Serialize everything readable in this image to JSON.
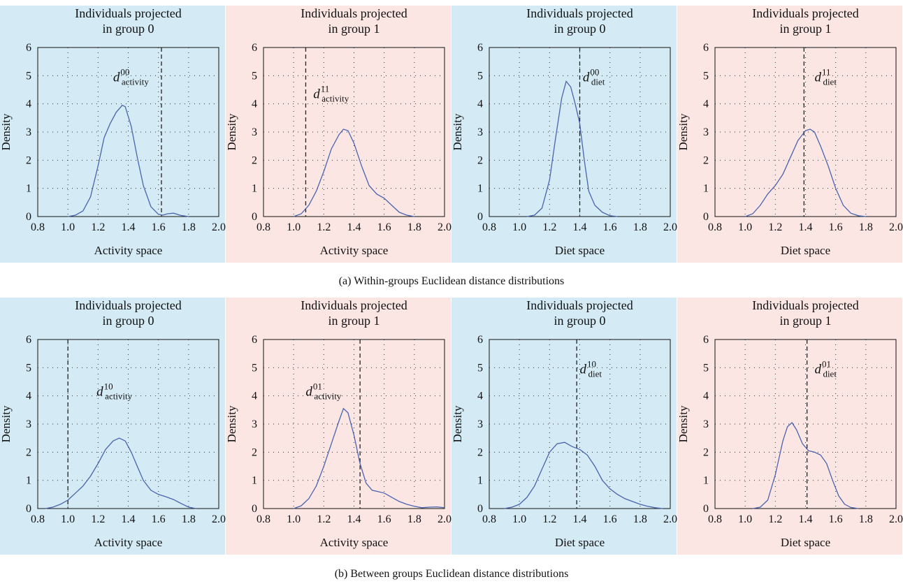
{
  "rows": [
    {
      "caption": "(a)  Within-groups Euclidean distance distributions",
      "panels": [
        {
          "bg": "#d4eaf4",
          "title_lines": [
            "Individuals projected",
            "in group 0"
          ],
          "xlabel": "Activity space",
          "ylabel": "Density",
          "annotation": {
            "base": "d",
            "sup": "00",
            "sub": "activity"
          },
          "chart_data": {
            "type": "line",
            "xlim": [
              0.8,
              2.0
            ],
            "ylim": [
              0,
              6
            ],
            "xticks": [
              "0.8",
              "1.0",
              "1.2",
              "1.4",
              "1.6",
              "1.8",
              "2.0"
            ],
            "yticks": [
              "0",
              "1",
              "2",
              "3",
              "4",
              "5",
              "6"
            ],
            "ref_x": 1.62,
            "annotation_at": [
              1.3,
              4.8
            ],
            "x": [
              1.0,
              1.05,
              1.1,
              1.15,
              1.2,
              1.24,
              1.28,
              1.32,
              1.36,
              1.38,
              1.42,
              1.46,
              1.5,
              1.55,
              1.6,
              1.63,
              1.66,
              1.7,
              1.75,
              1.8
            ],
            "y": [
              0.0,
              0.05,
              0.2,
              0.7,
              1.8,
              2.8,
              3.3,
              3.7,
              3.95,
              3.9,
              3.2,
              2.1,
              1.1,
              0.35,
              0.08,
              0.05,
              0.1,
              0.12,
              0.04,
              0.0
            ]
          }
        },
        {
          "bg": "#fbe6e4",
          "title_lines": [
            "Individuals projected",
            "in group 1"
          ],
          "xlabel": "Activity space",
          "ylabel": "Density",
          "annotation": {
            "base": "d",
            "sup": "11",
            "sub": "activity"
          },
          "chart_data": {
            "type": "line",
            "xlim": [
              0.8,
              2.0
            ],
            "ylim": [
              0,
              6
            ],
            "xticks": [
              "0.8",
              "1.0",
              "1.2",
              "1.4",
              "1.6",
              "1.8",
              "2.0"
            ],
            "yticks": [
              "0",
              "1",
              "2",
              "3",
              "4",
              "5",
              "6"
            ],
            "ref_x": 1.08,
            "annotation_at": [
              1.13,
              4.2
            ],
            "x": [
              1.0,
              1.05,
              1.1,
              1.15,
              1.2,
              1.25,
              1.3,
              1.33,
              1.36,
              1.4,
              1.45,
              1.5,
              1.55,
              1.6,
              1.65,
              1.7,
              1.75,
              1.8
            ],
            "y": [
              0.0,
              0.1,
              0.4,
              0.9,
              1.6,
              2.4,
              2.9,
              3.1,
              3.05,
              2.6,
              1.8,
              1.1,
              0.8,
              0.65,
              0.4,
              0.15,
              0.05,
              0.0
            ]
          }
        },
        {
          "bg": "#d4eaf4",
          "title_lines": [
            "Individuals projected",
            "in group 0"
          ],
          "xlabel": "Diet space",
          "ylabel": "Density",
          "annotation": {
            "base": "d",
            "sup": "00",
            "sub": "diet"
          },
          "chart_data": {
            "type": "line",
            "xlim": [
              0.8,
              2.0
            ],
            "ylim": [
              0,
              6
            ],
            "xticks": [
              "0.8",
              "1.0",
              "1.2",
              "1.4",
              "1.6",
              "1.8",
              "2.0"
            ],
            "yticks": [
              "0",
              "1",
              "2",
              "3",
              "4",
              "5",
              "6"
            ],
            "ref_x": 1.4,
            "annotation_at": [
              1.42,
              4.8
            ],
            "x": [
              1.05,
              1.1,
              1.15,
              1.2,
              1.24,
              1.28,
              1.31,
              1.34,
              1.37,
              1.4,
              1.43,
              1.46,
              1.5,
              1.55,
              1.6,
              1.65
            ],
            "y": [
              0.0,
              0.05,
              0.3,
              1.3,
              2.8,
              4.2,
              4.8,
              4.6,
              4.0,
              3.3,
              2.0,
              0.9,
              0.4,
              0.15,
              0.03,
              0.0
            ]
          }
        },
        {
          "bg": "#fbe6e4",
          "title_lines": [
            "Individuals projected",
            "in group 1"
          ],
          "xlabel": "Diet space",
          "ylabel": "Density",
          "annotation": {
            "base": "d",
            "sup": "11",
            "sub": "diet"
          },
          "chart_data": {
            "type": "line",
            "xlim": [
              0.8,
              2.0
            ],
            "ylim": [
              0,
              6
            ],
            "xticks": [
              "0.8",
              "1.0",
              "1.2",
              "1.4",
              "1.6",
              "1.8",
              "2.0"
            ],
            "yticks": [
              "0",
              "1",
              "2",
              "3",
              "4",
              "5",
              "6"
            ],
            "ref_x": 1.39,
            "annotation_at": [
              1.46,
              4.8
            ],
            "x": [
              1.0,
              1.05,
              1.1,
              1.15,
              1.2,
              1.25,
              1.3,
              1.35,
              1.4,
              1.43,
              1.46,
              1.5,
              1.55,
              1.6,
              1.65,
              1.7,
              1.75,
              1.8
            ],
            "y": [
              0.0,
              0.1,
              0.4,
              0.8,
              1.1,
              1.5,
              2.1,
              2.7,
              3.05,
              3.1,
              3.0,
              2.5,
              1.8,
              1.0,
              0.4,
              0.12,
              0.03,
              0.0
            ]
          }
        }
      ]
    },
    {
      "caption": "(b)  Between groups Euclidean distance distributions",
      "panels": [
        {
          "bg": "#d4eaf4",
          "title_lines": [
            "Individuals projected",
            "in group 0"
          ],
          "xlabel": "Activity space",
          "ylabel": "Density",
          "annotation": {
            "base": "d",
            "sup": "10",
            "sub": "activity"
          },
          "chart_data": {
            "type": "line",
            "xlim": [
              0.8,
              2.0
            ],
            "ylim": [
              0,
              6
            ],
            "xticks": [
              "0.8",
              "1.0",
              "1.2",
              "1.4",
              "1.6",
              "1.8",
              "2.0"
            ],
            "yticks": [
              "0",
              "1",
              "2",
              "3",
              "4",
              "5",
              "6"
            ],
            "ref_x": 1.0,
            "annotation_at": [
              1.19,
              4.0
            ],
            "x": [
              0.85,
              0.9,
              0.95,
              1.0,
              1.05,
              1.1,
              1.15,
              1.2,
              1.25,
              1.3,
              1.34,
              1.38,
              1.42,
              1.46,
              1.5,
              1.55,
              1.6,
              1.65,
              1.7,
              1.75,
              1.8,
              1.85
            ],
            "y": [
              0.0,
              0.05,
              0.15,
              0.3,
              0.55,
              0.8,
              1.15,
              1.6,
              2.1,
              2.4,
              2.5,
              2.4,
              2.0,
              1.5,
              1.0,
              0.65,
              0.5,
              0.42,
              0.32,
              0.18,
              0.05,
              0.0
            ]
          }
        },
        {
          "bg": "#fbe6e4",
          "title_lines": [
            "Individuals projected",
            "in group 1"
          ],
          "xlabel": "Activity space",
          "ylabel": "Density",
          "annotation": {
            "base": "d",
            "sup": "01",
            "sub": "activity"
          },
          "chart_data": {
            "type": "line",
            "xlim": [
              0.8,
              2.0
            ],
            "ylim": [
              0,
              6
            ],
            "xticks": [
              "0.8",
              "1.0",
              "1.2",
              "1.4",
              "1.6",
              "1.8",
              "2.0"
            ],
            "yticks": [
              "0",
              "1",
              "2",
              "3",
              "4",
              "5",
              "6"
            ],
            "ref_x": 1.44,
            "annotation_at": [
              1.08,
              4.0
            ],
            "x": [
              1.0,
              1.05,
              1.1,
              1.15,
              1.2,
              1.25,
              1.3,
              1.33,
              1.36,
              1.4,
              1.44,
              1.48,
              1.52,
              1.56,
              1.6,
              1.65,
              1.7,
              1.75,
              1.8,
              1.85,
              1.9,
              1.95,
              2.0
            ],
            "y": [
              0.0,
              0.1,
              0.35,
              0.8,
              1.5,
              2.3,
              3.1,
              3.55,
              3.4,
              2.6,
              1.6,
              0.9,
              0.65,
              0.6,
              0.55,
              0.4,
              0.25,
              0.15,
              0.08,
              0.03,
              0.05,
              0.06,
              0.03
            ]
          }
        },
        {
          "bg": "#d4eaf4",
          "title_lines": [
            "Individuals projected",
            "in group 0"
          ],
          "xlabel": "Diet space",
          "ylabel": "Density",
          "annotation": {
            "base": "d",
            "sup": "10",
            "sub": "diet"
          },
          "chart_data": {
            "type": "line",
            "xlim": [
              0.8,
              2.0
            ],
            "ylim": [
              0,
              6
            ],
            "xticks": [
              "0.8",
              "1.0",
              "1.2",
              "1.4",
              "1.6",
              "1.8",
              "2.0"
            ],
            "yticks": [
              "0",
              "1",
              "2",
              "3",
              "4",
              "5",
              "6"
            ],
            "ref_x": 1.38,
            "annotation_at": [
              1.4,
              4.8
            ],
            "x": [
              0.9,
              0.95,
              1.0,
              1.05,
              1.1,
              1.15,
              1.2,
              1.25,
              1.3,
              1.35,
              1.4,
              1.45,
              1.5,
              1.55,
              1.6,
              1.65,
              1.7,
              1.75,
              1.8,
              1.85,
              1.9,
              1.95
            ],
            "y": [
              0.0,
              0.05,
              0.15,
              0.4,
              0.8,
              1.4,
              2.0,
              2.3,
              2.35,
              2.2,
              2.1,
              1.9,
              1.5,
              1.0,
              0.7,
              0.5,
              0.35,
              0.25,
              0.15,
              0.08,
              0.03,
              0.0
            ]
          }
        },
        {
          "bg": "#fbe6e4",
          "title_lines": [
            "Individuals projected",
            "in group 1"
          ],
          "xlabel": "Diet space",
          "ylabel": "Density",
          "annotation": {
            "base": "d",
            "sup": "01",
            "sub": "diet"
          },
          "chart_data": {
            "type": "line",
            "xlim": [
              0.8,
              2.0
            ],
            "ylim": [
              0,
              6
            ],
            "xticks": [
              "0.8",
              "1.0",
              "1.2",
              "1.4",
              "1.6",
              "1.8",
              "2.0"
            ],
            "yticks": [
              "0",
              "1",
              "2",
              "3",
              "4",
              "5",
              "6"
            ],
            "ref_x": 1.41,
            "annotation_at": [
              1.46,
              4.8
            ],
            "x": [
              1.05,
              1.1,
              1.15,
              1.2,
              1.25,
              1.28,
              1.31,
              1.34,
              1.38,
              1.42,
              1.46,
              1.5,
              1.54,
              1.58,
              1.62,
              1.66,
              1.7,
              1.75
            ],
            "y": [
              0.0,
              0.05,
              0.3,
              1.2,
              2.4,
              2.9,
              3.05,
              2.8,
              2.3,
              2.05,
              2.0,
              1.9,
              1.6,
              1.0,
              0.45,
              0.15,
              0.04,
              0.0
            ]
          }
        }
      ]
    }
  ]
}
